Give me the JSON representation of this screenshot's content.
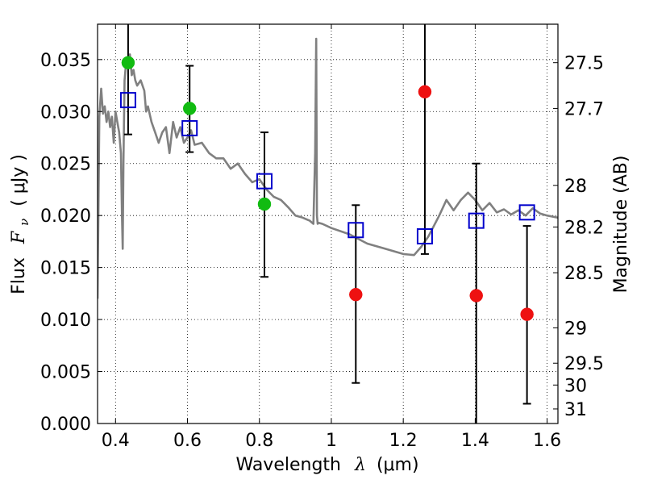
{
  "chart_data": {
    "type": "scatter",
    "xlabel_main": "Wavelength",
    "xlabel_symbol": "λ",
    "xlabel_unit": "(μm)",
    "ylabel_main": "Flux",
    "ylabel_symbol": "F",
    "ylabel_sub": "ν",
    "ylabel_unit": "( μJy )",
    "y2label": "Magnitude (AB)",
    "xlim": [
      0.35,
      1.63
    ],
    "ylim": [
      0.0,
      0.0384
    ],
    "x_ticks": [
      0.4,
      0.6,
      0.8,
      1.0,
      1.2,
      1.4,
      1.6
    ],
    "x_tick_labels": [
      "0.4",
      "0.6",
      "0.8",
      "1",
      "1.2",
      "1.4",
      "1.6"
    ],
    "y_ticks": [
      0.0,
      0.005,
      0.01,
      0.015,
      0.02,
      0.025,
      0.03,
      0.035
    ],
    "y_tick_labels": [
      "0.000",
      "0.005",
      "0.010",
      "0.015",
      "0.020",
      "0.025",
      "0.030",
      "0.035"
    ],
    "y2_ticks": [
      {
        "label": "27.5",
        "flux": 0.0347
      },
      {
        "label": "27.7",
        "flux": 0.0303
      },
      {
        "label": "28",
        "flux": 0.0229
      },
      {
        "label": "28.2",
        "flux": 0.0189
      },
      {
        "label": "28.5",
        "flux": 0.0145
      },
      {
        "label": "29",
        "flux": 0.0092
      },
      {
        "label": "29.5",
        "flux": 0.0058
      },
      {
        "label": "30",
        "flux": 0.0037
      },
      {
        "label": "31",
        "flux": 0.0014
      }
    ],
    "grid": true,
    "colors": {
      "model": "#808080",
      "model_photometry": "#0000cc",
      "detection": "#11bb11",
      "upper_limit": "#ee1111",
      "errorbar": "#000000"
    },
    "model_spectrum": {
      "x": [
        0.35,
        0.355,
        0.36,
        0.365,
        0.37,
        0.375,
        0.38,
        0.385,
        0.39,
        0.395,
        0.4,
        0.405,
        0.41,
        0.415,
        0.418,
        0.42,
        0.422,
        0.425,
        0.43,
        0.435,
        0.44,
        0.445,
        0.45,
        0.455,
        0.46,
        0.47,
        0.48,
        0.485,
        0.49,
        0.5,
        0.51,
        0.52,
        0.53,
        0.54,
        0.55,
        0.56,
        0.57,
        0.58,
        0.59,
        0.6,
        0.61,
        0.62,
        0.64,
        0.66,
        0.68,
        0.7,
        0.72,
        0.74,
        0.76,
        0.78,
        0.8,
        0.82,
        0.84,
        0.86,
        0.88,
        0.9,
        0.92,
        0.94,
        0.95,
        0.955,
        0.958,
        0.96,
        0.962,
        0.965,
        0.975,
        1.0,
        1.05,
        1.1,
        1.15,
        1.2,
        1.23,
        1.25,
        1.27,
        1.3,
        1.32,
        1.34,
        1.36,
        1.38,
        1.4,
        1.42,
        1.44,
        1.46,
        1.48,
        1.5,
        1.52,
        1.54,
        1.56,
        1.58,
        1.6,
        1.63
      ],
      "y": [
        0.012,
        0.0295,
        0.0322,
        0.0298,
        0.0305,
        0.029,
        0.03,
        0.0285,
        0.0295,
        0.027,
        0.03,
        0.029,
        0.028,
        0.026,
        0.02,
        0.0168,
        0.025,
        0.033,
        0.035,
        0.0345,
        0.0355,
        0.0335,
        0.034,
        0.033,
        0.0325,
        0.033,
        0.032,
        0.03,
        0.0305,
        0.029,
        0.028,
        0.027,
        0.028,
        0.0285,
        0.026,
        0.029,
        0.0275,
        0.0285,
        0.027,
        0.0275,
        0.0282,
        0.0268,
        0.027,
        0.026,
        0.0255,
        0.0255,
        0.0245,
        0.025,
        0.024,
        0.0232,
        0.0235,
        0.0225,
        0.0218,
        0.0215,
        0.0208,
        0.02,
        0.0198,
        0.0195,
        0.0192,
        0.026,
        0.037,
        0.02,
        0.0192,
        0.0193,
        0.0192,
        0.0188,
        0.0182,
        0.0173,
        0.0168,
        0.0163,
        0.0162,
        0.017,
        0.018,
        0.02,
        0.0215,
        0.0205,
        0.0215,
        0.0222,
        0.0215,
        0.0205,
        0.0212,
        0.0203,
        0.0206,
        0.0201,
        0.0205,
        0.02,
        0.0207,
        0.0202,
        0.02,
        0.0198
      ]
    },
    "model_photometry": [
      {
        "x": 0.435,
        "y": 0.0311
      },
      {
        "x": 0.606,
        "y": 0.0284
      },
      {
        "x": 0.814,
        "y": 0.0233
      },
      {
        "x": 1.068,
        "y": 0.0186
      },
      {
        "x": 1.26,
        "y": 0.018
      },
      {
        "x": 1.403,
        "y": 0.0195
      },
      {
        "x": 1.544,
        "y": 0.0203
      }
    ],
    "observed": [
      {
        "x": 0.435,
        "y": 0.0347,
        "ylo": 0.0278,
        "yhi": 0.0384,
        "status": "detection"
      },
      {
        "x": 0.606,
        "y": 0.0303,
        "ylo": 0.0261,
        "yhi": 0.0344,
        "status": "detection"
      },
      {
        "x": 0.814,
        "y": 0.0211,
        "ylo": 0.0141,
        "yhi": 0.028,
        "status": "detection"
      },
      {
        "x": 1.068,
        "y": 0.0124,
        "ylo": 0.0039,
        "yhi": 0.021,
        "status": "upper_limit"
      },
      {
        "x": 1.26,
        "y": 0.0319,
        "ylo": 0.0163,
        "yhi": 0.0384,
        "status": "upper_limit"
      },
      {
        "x": 1.403,
        "y": 0.0123,
        "ylo": 0.0,
        "yhi": 0.025,
        "status": "upper_limit"
      },
      {
        "x": 1.544,
        "y": 0.0105,
        "ylo": 0.0019,
        "yhi": 0.019,
        "status": "upper_limit"
      }
    ]
  }
}
